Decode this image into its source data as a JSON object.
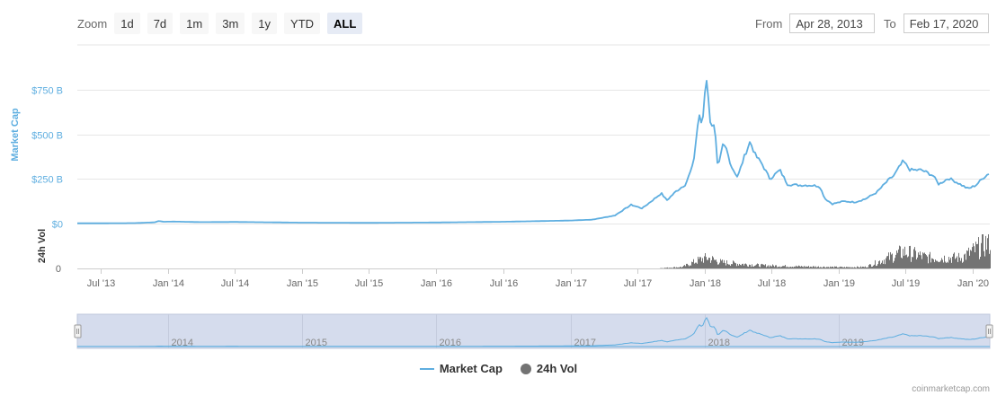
{
  "toolbar": {
    "zoom_label": "Zoom",
    "buttons": [
      "1d",
      "7d",
      "1m",
      "3m",
      "1y",
      "YTD",
      "ALL"
    ],
    "active": "ALL",
    "from_label": "From",
    "from_value": "Apr 28, 2013",
    "to_label": "To",
    "to_value": "Feb 17, 2020"
  },
  "credit": "coinmarketcap.com",
  "colors": {
    "market_cap": "#5eaee0",
    "volume": "#737373",
    "navigator_fill": "#d5dced"
  },
  "chart_data": {
    "type": "line",
    "x_range": [
      "2013-04-28",
      "2020-02-17"
    ],
    "x_ticks": [
      "Jul '13",
      "Jan '14",
      "Jul '14",
      "Jan '15",
      "Jul '15",
      "Jan '16",
      "Jul '16",
      "Jan '17",
      "Jul '17",
      "Jan '18",
      "Jul '18",
      "Jan '19",
      "Jul '19",
      "Jan '20"
    ],
    "x_tick_dates": [
      "2013-07-01",
      "2014-01-01",
      "2014-07-01",
      "2015-01-01",
      "2015-07-01",
      "2016-01-01",
      "2016-07-01",
      "2017-01-01",
      "2017-07-01",
      "2018-01-01",
      "2018-07-01",
      "2019-01-01",
      "2019-07-01",
      "2020-01-01"
    ],
    "y_axis": {
      "label": "Market Cap",
      "ticks": [
        "$750 B",
        "$500 B",
        "$250 B",
        "$0"
      ],
      "tick_values": [
        750,
        500,
        250,
        0
      ],
      "ylim": [
        0,
        850
      ],
      "unit": "B USD"
    },
    "volume_axis": {
      "label": "24h Vol",
      "ticks": [
        "0"
      ]
    },
    "navigator_labels": [
      "2014",
      "2015",
      "2016",
      "2017",
      "2018",
      "2019"
    ],
    "navigator_dates": [
      "2014-01-01",
      "2015-01-01",
      "2016-01-01",
      "2017-01-01",
      "2018-01-01",
      "2019-01-01"
    ],
    "series": [
      {
        "name": "Market Cap",
        "points": [
          [
            "2013-04-28",
            1.5
          ],
          [
            "2013-07-01",
            1.5
          ],
          [
            "2013-10-01",
            2.5
          ],
          [
            "2013-11-25",
            7
          ],
          [
            "2013-12-05",
            14
          ],
          [
            "2013-12-20",
            10
          ],
          [
            "2014-01-15",
            11
          ],
          [
            "2014-04-01",
            8
          ],
          [
            "2014-07-01",
            9
          ],
          [
            "2014-10-01",
            7
          ],
          [
            "2015-01-01",
            5
          ],
          [
            "2015-07-01",
            4
          ],
          [
            "2016-01-01",
            6
          ],
          [
            "2016-07-01",
            10
          ],
          [
            "2017-01-01",
            17
          ],
          [
            "2017-03-01",
            22
          ],
          [
            "2017-05-01",
            45
          ],
          [
            "2017-06-15",
            105
          ],
          [
            "2017-07-15",
            85
          ],
          [
            "2017-08-15",
            135
          ],
          [
            "2017-09-05",
            170
          ],
          [
            "2017-09-20",
            130
          ],
          [
            "2017-10-15",
            180
          ],
          [
            "2017-11-10",
            220
          ],
          [
            "2017-12-01",
            330
          ],
          [
            "2017-12-17",
            620
          ],
          [
            "2017-12-25",
            530
          ],
          [
            "2018-01-04",
            800
          ],
          [
            "2018-01-08",
            820
          ],
          [
            "2018-01-16",
            560
          ],
          [
            "2018-01-28",
            560
          ],
          [
            "2018-02-06",
            300
          ],
          [
            "2018-02-20",
            440
          ],
          [
            "2018-03-01",
            420
          ],
          [
            "2018-03-15",
            320
          ],
          [
            "2018-04-01",
            260
          ],
          [
            "2018-04-20",
            380
          ],
          [
            "2018-05-05",
            460
          ],
          [
            "2018-05-20",
            380
          ],
          [
            "2018-06-05",
            340
          ],
          [
            "2018-06-28",
            250
          ],
          [
            "2018-07-25",
            300
          ],
          [
            "2018-08-15",
            220
          ],
          [
            "2018-09-15",
            215
          ],
          [
            "2018-10-15",
            215
          ],
          [
            "2018-11-10",
            210
          ],
          [
            "2018-11-25",
            140
          ],
          [
            "2018-12-15",
            110
          ],
          [
            "2019-01-15",
            125
          ],
          [
            "2019-02-15",
            120
          ],
          [
            "2019-03-15",
            138
          ],
          [
            "2019-04-15",
            175
          ],
          [
            "2019-05-15",
            240
          ],
          [
            "2019-06-01",
            270
          ],
          [
            "2019-06-26",
            350
          ],
          [
            "2019-07-15",
            300
          ],
          [
            "2019-08-15",
            300
          ],
          [
            "2019-09-15",
            270
          ],
          [
            "2019-10-01",
            220
          ],
          [
            "2019-10-28",
            255
          ],
          [
            "2019-11-20",
            230
          ],
          [
            "2019-12-20",
            195
          ],
          [
            "2020-01-10",
            215
          ],
          [
            "2020-02-01",
            260
          ],
          [
            "2020-02-17",
            285
          ]
        ]
      },
      {
        "name": "24h Vol",
        "points": [
          [
            "2017-09-01",
            0.01
          ],
          [
            "2017-11-01",
            0.05
          ],
          [
            "2017-12-20",
            0.3
          ],
          [
            "2018-01-08",
            0.35
          ],
          [
            "2018-02-15",
            0.2
          ],
          [
            "2018-06-01",
            0.1
          ],
          [
            "2018-09-01",
            0.07
          ],
          [
            "2018-12-01",
            0.05
          ],
          [
            "2019-01-15",
            0.04
          ],
          [
            "2019-03-15",
            0.05
          ],
          [
            "2019-04-15",
            0.2
          ],
          [
            "2019-06-26",
            0.55
          ],
          [
            "2019-09-01",
            0.35
          ],
          [
            "2019-12-01",
            0.35
          ],
          [
            "2020-02-17",
            0.9
          ]
        ]
      }
    ],
    "legend": [
      "Market Cap",
      "24h Vol"
    ],
    "legend_position": "bottom-center",
    "grid": true
  }
}
